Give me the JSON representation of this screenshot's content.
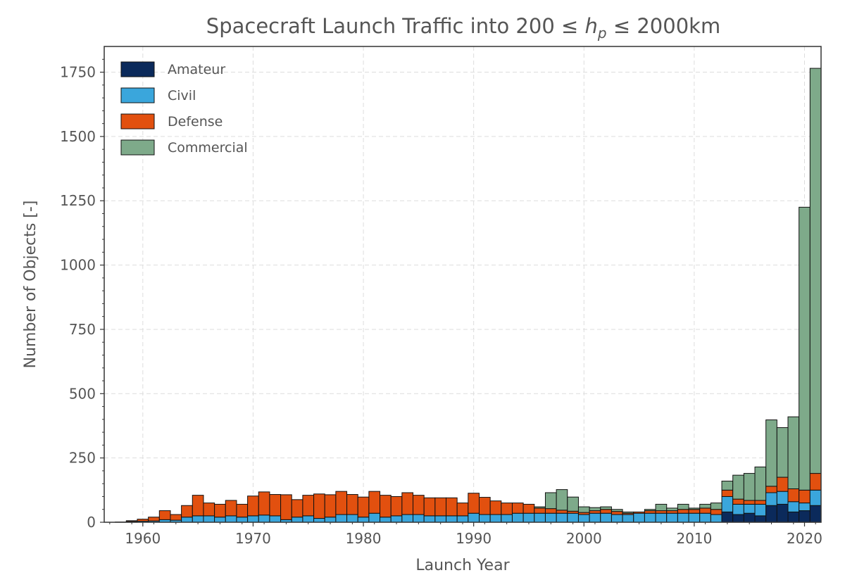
{
  "chart_data": {
    "type": "bar",
    "stacked": true,
    "title_main": "Spacecraft Launch Traffic into 200 ≤",
    "title_var": "h",
    "title_sub": "p",
    "title_tail": "≤ 2000km",
    "xlabel": "Launch Year",
    "ylabel": "Number of Objects [-]",
    "xlim": [
      1956.5,
      2021.5
    ],
    "ylim": [
      0,
      1850
    ],
    "xticks": [
      1960,
      1970,
      1980,
      1990,
      2000,
      2010,
      2020
    ],
    "yticks": [
      0,
      250,
      500,
      750,
      1000,
      1250,
      1500,
      1750
    ],
    "grid": true,
    "legend_position": "upper-left",
    "x": [
      1957,
      1958,
      1959,
      1960,
      1961,
      1962,
      1963,
      1964,
      1965,
      1966,
      1967,
      1968,
      1969,
      1970,
      1971,
      1972,
      1973,
      1974,
      1975,
      1976,
      1977,
      1978,
      1979,
      1980,
      1981,
      1982,
      1983,
      1984,
      1985,
      1986,
      1987,
      1988,
      1989,
      1990,
      1991,
      1992,
      1993,
      1994,
      1995,
      1996,
      1997,
      1998,
      1999,
      2000,
      2001,
      2002,
      2003,
      2004,
      2005,
      2006,
      2007,
      2008,
      2009,
      2010,
      2011,
      2012,
      2013,
      2014,
      2015,
      2016,
      2017,
      2018,
      2019,
      2020,
      2021
    ],
    "series": [
      {
        "name": "Amateur",
        "color": "#0b2a5b",
        "values": [
          0,
          0,
          0,
          0,
          0,
          0,
          0,
          0,
          0,
          0,
          0,
          0,
          0,
          0,
          0,
          0,
          0,
          0,
          0,
          0,
          0,
          0,
          0,
          0,
          0,
          0,
          0,
          0,
          0,
          0,
          0,
          0,
          0,
          0,
          0,
          0,
          0,
          0,
          0,
          0,
          0,
          0,
          0,
          0,
          0,
          0,
          0,
          0,
          0,
          0,
          0,
          0,
          0,
          0,
          0,
          0,
          40,
          30,
          35,
          25,
          65,
          70,
          40,
          45,
          65
        ]
      },
      {
        "name": "Civil",
        "color": "#3aa6dc",
        "values": [
          0,
          1,
          3,
          4,
          5,
          10,
          8,
          20,
          25,
          25,
          20,
          25,
          20,
          25,
          28,
          25,
          10,
          20,
          25,
          15,
          20,
          30,
          30,
          20,
          35,
          20,
          25,
          30,
          30,
          25,
          25,
          25,
          25,
          35,
          30,
          30,
          30,
          35,
          35,
          35,
          35,
          35,
          35,
          30,
          35,
          35,
          30,
          30,
          35,
          35,
          35,
          35,
          35,
          35,
          35,
          30,
          60,
          40,
          35,
          45,
          50,
          50,
          40,
          30,
          60
        ]
      },
      {
        "name": "Defense",
        "color": "#e2500f",
        "values": [
          0,
          0,
          3,
          8,
          15,
          35,
          22,
          45,
          80,
          50,
          50,
          60,
          50,
          77,
          90,
          83,
          97,
          68,
          80,
          95,
          87,
          90,
          78,
          78,
          85,
          85,
          75,
          85,
          75,
          70,
          70,
          70,
          50,
          78,
          67,
          53,
          45,
          40,
          35,
          20,
          18,
          12,
          8,
          8,
          10,
          15,
          12,
          5,
          5,
          10,
          10,
          10,
          15,
          15,
          20,
          20,
          25,
          20,
          15,
          15,
          25,
          55,
          50,
          50,
          65
        ]
      },
      {
        "name": "Commercial",
        "color": "#7eaa8a",
        "values": [
          0,
          0,
          0,
          0,
          0,
          0,
          0,
          0,
          0,
          0,
          0,
          0,
          0,
          0,
          0,
          0,
          0,
          0,
          0,
          0,
          0,
          0,
          0,
          0,
          0,
          0,
          0,
          0,
          0,
          0,
          0,
          0,
          0,
          0,
          0,
          0,
          0,
          0,
          0,
          5,
          62,
          80,
          55,
          22,
          12,
          10,
          8,
          5,
          0,
          5,
          25,
          10,
          20,
          5,
          15,
          25,
          35,
          93,
          105,
          130,
          258,
          193,
          280,
          1100,
          1575
        ]
      }
    ]
  }
}
